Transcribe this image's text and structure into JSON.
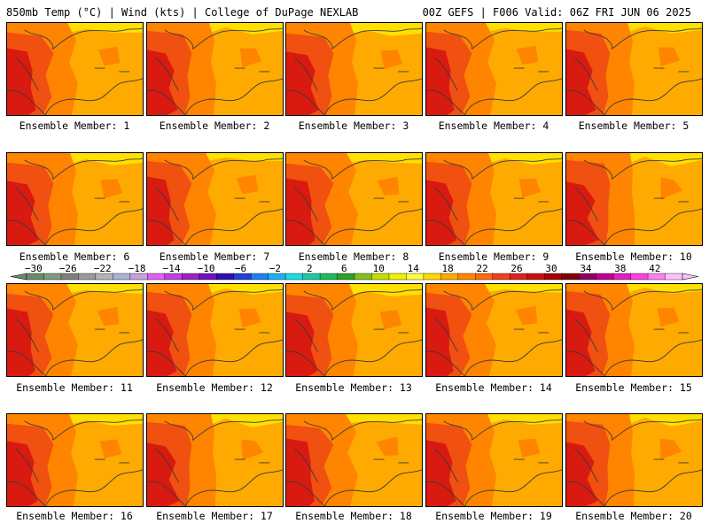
{
  "header": {
    "left": "850mb Temp (°C) | Wind (kts) | College of DuPage NEXLAB",
    "right": "00Z GEFS | F006 Valid: 06Z FRI JUN 06 2025"
  },
  "panel_label_prefix": "Ensemble Member: ",
  "members": [
    1,
    2,
    3,
    4,
    5,
    6,
    7,
    8,
    9,
    10,
    11,
    12,
    13,
    14,
    15,
    16,
    17,
    18,
    19,
    20
  ],
  "colorbar": {
    "labels": [
      "-30",
      "-26",
      "-22",
      "-18",
      "-14",
      "-10",
      "-6",
      "-2",
      "2",
      "6",
      "10",
      "14",
      "18",
      "22",
      "26",
      "30",
      "34",
      "38",
      "42"
    ],
    "colors": [
      "#6b8b6b",
      "#7c9c7c",
      "#808080",
      "#9a9a9a",
      "#b4b4b4",
      "#a8b4d2",
      "#c8a0dc",
      "#e060f0",
      "#c040e0",
      "#a020c8",
      "#7010c0",
      "#3010b0",
      "#2040d8",
      "#2080f0",
      "#20b0f0",
      "#20d8e0",
      "#20c8a0",
      "#20b860",
      "#30a030",
      "#80c020",
      "#c0e000",
      "#f0f000",
      "#ffff40",
      "#ffd800",
      "#ffaa00",
      "#ff8800",
      "#ff6a10",
      "#f04020",
      "#e02020",
      "#c81010",
      "#a80000",
      "#800000",
      "#900060",
      "#c00090",
      "#e020c0",
      "#ff40e0",
      "#ff80f0",
      "#ffc0ff"
    ]
  },
  "field_colors": {
    "t14": "#ffe000",
    "t18": "#ffaa00",
    "t22": "#ff8400",
    "t26": "#f05010",
    "t30": "#d81a10"
  }
}
